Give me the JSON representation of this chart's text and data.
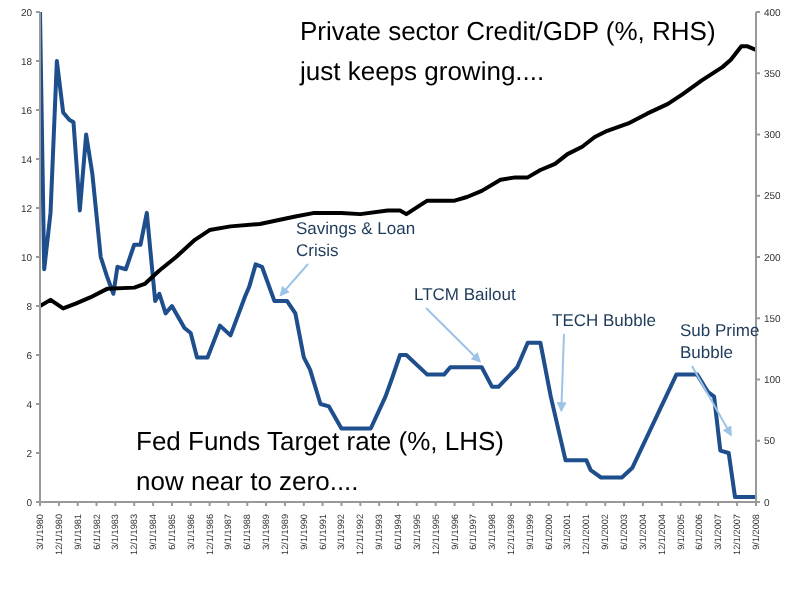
{
  "chart_data": {
    "type": "line",
    "series": [
      {
        "color": "#1f4e8c",
        "values": [
          20,
          9.5,
          11.8,
          18,
          15.9,
          15.6,
          15.5,
          11.9,
          15,
          13.4,
          10,
          9.2,
          8.5,
          9.6,
          9.5,
          10.5,
          10.5,
          11.8,
          8.2,
          8.5,
          7.7,
          8,
          7.1,
          6.9,
          5.9,
          5.9,
          7.2,
          6.8,
          8.4,
          8.8,
          9.7,
          9.6,
          8.2,
          8.2,
          7.7,
          5.9,
          5.4,
          4,
          3.9,
          3,
          3,
          4.3,
          5,
          6,
          6,
          5.2,
          5.2,
          5.5,
          5.5,
          4.7,
          4.7,
          5.5,
          6.5,
          6.5,
          4.3,
          1.7,
          1.7,
          1.3,
          1,
          1,
          1.4,
          5.2,
          5.2,
          4.5,
          4.3,
          2.1,
          2,
          0.2,
          0.2
        ],
        "x": [
          "1980-03",
          "1980-05",
          "1980-08",
          "1980-11",
          "1981-02",
          "1981-05",
          "1981-07",
          "1981-10",
          "1982-01",
          "1982-04",
          "1982-08",
          "1982-11",
          "1983-02",
          "1983-04",
          "1983-08",
          "1983-12",
          "1984-03",
          "1984-06",
          "1984-10",
          "1984-12",
          "1985-03",
          "1985-06",
          "1985-12",
          "1986-03",
          "1986-06",
          "1986-11",
          "1987-05",
          "1987-10",
          "1988-05",
          "1988-07",
          "1988-10",
          "1989-01",
          "1989-07",
          "1990-01",
          "1990-05",
          "1990-09",
          "1990-12",
          "1991-05",
          "1991-09",
          "1992-03",
          "1993-05",
          "1993-12",
          "1994-03",
          "1994-07",
          "1994-10",
          "1995-08",
          "1996-04",
          "1996-07",
          "1997-10",
          "1998-03",
          "1998-06",
          "1999-03",
          "1999-08",
          "2000-02",
          "2000-07",
          "2001-02",
          "2001-12",
          "2002-02",
          "2002-07",
          "2003-05",
          "2003-10",
          "2005-07",
          "2006-05",
          "2006-10",
          "2007-01",
          "2007-04",
          "2007-08",
          "2007-11",
          "2008-09"
        ]
      },
      {
        "color": "#000000",
        "axis": "y2",
        "values": [
          160,
          165,
          158,
          162,
          167,
          174,
          175,
          178,
          189,
          200,
          214,
          222,
          225,
          227,
          233,
          236,
          236,
          235,
          238,
          238,
          235,
          246,
          246,
          249,
          254,
          263,
          265,
          265,
          271,
          276,
          284,
          290,
          298,
          303,
          309,
          317,
          325,
          333,
          344,
          355,
          361,
          372,
          372,
          369
        ],
        "x": [
          "1980-03",
          "1980-08",
          "1981-02",
          "1981-08",
          "1982-03",
          "1982-11",
          "1983-12",
          "1984-05",
          "1984-12",
          "1985-08",
          "1986-05",
          "1986-12",
          "1987-10",
          "1988-12",
          "1990-05",
          "1991-02",
          "1992-03",
          "1992-12",
          "1994-01",
          "1994-07",
          "1994-10",
          "1995-08",
          "1996-09",
          "1997-03",
          "1997-10",
          "1998-07",
          "1999-02",
          "1999-08",
          "2000-02",
          "2000-09",
          "2001-03",
          "2001-10",
          "2002-04",
          "2002-10",
          "2003-08",
          "2004-05",
          "2005-03",
          "2005-10",
          "2006-07",
          "2007-05",
          "2007-09",
          "2008-02",
          "2008-05",
          "2008-09"
        ]
      }
    ],
    "xlim": [
      "1980-03",
      "2008-09"
    ],
    "xticks": [
      {
        "value": "1980-03",
        "label": "3/1/1980"
      },
      {
        "value": "1980-12",
        "label": "12/1/1980"
      },
      {
        "value": "1981-09",
        "label": "9/1/1981"
      },
      {
        "value": "1982-06",
        "label": "6/1/1982"
      },
      {
        "value": "1983-03",
        "label": "3/1/1983"
      },
      {
        "value": "1983-12",
        "label": "12/1/1983"
      },
      {
        "value": "1984-09",
        "label": "9/1/1984"
      },
      {
        "value": "1985-06",
        "label": "6/1/1985"
      },
      {
        "value": "1986-03",
        "label": "3/1/1986"
      },
      {
        "value": "1986-12",
        "label": "12/1/1986"
      },
      {
        "value": "1987-09",
        "label": "9/1/1987"
      },
      {
        "value": "1988-06",
        "label": "6/1/1988"
      },
      {
        "value": "1989-03",
        "label": "3/1/1989"
      },
      {
        "value": "1989-12",
        "label": "12/1/1989"
      },
      {
        "value": "1990-09",
        "label": "9/1/1990"
      },
      {
        "value": "1991-06",
        "label": "6/1/1991"
      },
      {
        "value": "1992-03",
        "label": "3/1/1992"
      },
      {
        "value": "1992-12",
        "label": "12/1/1992"
      },
      {
        "value": "1993-09",
        "label": "9/1/1993"
      },
      {
        "value": "1994-06",
        "label": "6/1/1994"
      },
      {
        "value": "1995-03",
        "label": "3/1/1995"
      },
      {
        "value": "1995-12",
        "label": "12/1/1995"
      },
      {
        "value": "1996-09",
        "label": "9/1/1996"
      },
      {
        "value": "1997-06",
        "label": "6/1/1997"
      },
      {
        "value": "1998-03",
        "label": "3/1/1998"
      },
      {
        "value": "1998-12",
        "label": "12/1/1998"
      },
      {
        "value": "1999-09",
        "label": "9/1/1999"
      },
      {
        "value": "2000-06",
        "label": "6/1/2000"
      },
      {
        "value": "2001-03",
        "label": "3/1/2001"
      },
      {
        "value": "2001-12",
        "label": "12/1/2001"
      },
      {
        "value": "2002-09",
        "label": "9/1/2002"
      },
      {
        "value": "2003-06",
        "label": "6/1/2003"
      },
      {
        "value": "2004-03",
        "label": "3/1/2004"
      },
      {
        "value": "2004-12",
        "label": "12/1/2004"
      },
      {
        "value": "2005-09",
        "label": "9/1/2005"
      },
      {
        "value": "2006-06",
        "label": "6/1/2006"
      },
      {
        "value": "2007-03",
        "label": "3/1/2007"
      },
      {
        "value": "2007-12",
        "label": "12/1/2007"
      },
      {
        "value": "2008-09",
        "label": "9/1/2008"
      }
    ],
    "ylim": [
      0,
      20
    ],
    "yticks": [
      0,
      2,
      4,
      6,
      8,
      10,
      12,
      14,
      16,
      18,
      20
    ],
    "y2lim": [
      0,
      400
    ],
    "y2ticks": [
      0,
      50,
      100,
      150,
      200,
      250,
      300,
      350,
      400
    ],
    "marker": "none",
    "line_style": "solid",
    "annotations": [
      "Private sector Credit/GDP (%, RHS)\njust keeps growing....",
      "Fed Funds Target rate (%, LHS)\nnow near to zero....",
      {
        "text": "Savings & Loan\nCrisis",
        "x": "1989-10",
        "y": 8.2
      },
      {
        "text": "LTCM Bailout",
        "x": "1997-09",
        "y": 5.5
      },
      {
        "text": "TECH Bubble",
        "x": "2000-12",
        "y": 3.5
      },
      {
        "text": "Sub Prime\nBubble",
        "x": "2007-09",
        "y": 2.5
      }
    ]
  }
}
